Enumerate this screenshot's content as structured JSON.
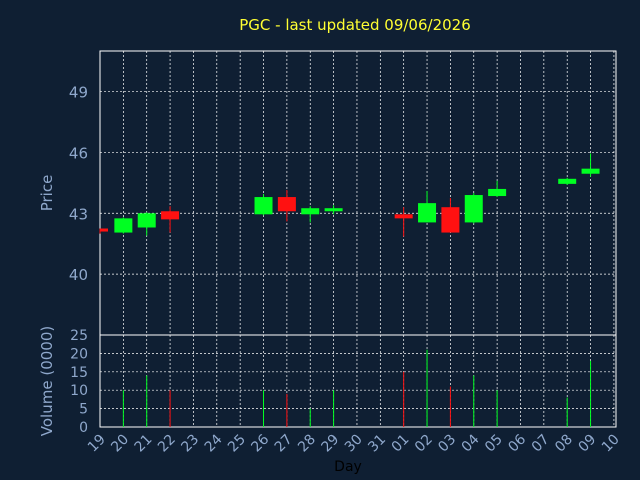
{
  "chart_data": {
    "type": "candlestick",
    "title": "PGC - last updated 09/06/2026",
    "xlabel": "Day",
    "price_panel": {
      "ylabel": "Price",
      "yticks": [
        40,
        43,
        46,
        49
      ],
      "ylim": [
        37,
        41.05
      ],
      "grid": true
    },
    "volume_panel": {
      "ylabel": "Volume (0000)",
      "yticks": [
        0,
        5,
        10,
        15,
        20,
        25
      ],
      "ylim": [
        0,
        25
      ],
      "grid": true
    },
    "days": [
      "19",
      "20",
      "21",
      "22",
      "23",
      "24",
      "25",
      "26",
      "27",
      "28",
      "29",
      "30",
      "31",
      "01",
      "02",
      "03",
      "04",
      "05",
      "06",
      "07",
      "08",
      "09",
      "10"
    ],
    "candles": [
      {
        "day": "19",
        "open": 42.1,
        "high": 42.25,
        "low": 42.0,
        "close": 42.25,
        "volume": 0,
        "color": "red"
      },
      {
        "day": "20",
        "open": 42.05,
        "high": 42.8,
        "low": 42.0,
        "close": 42.75,
        "volume": 10,
        "color": "green"
      },
      {
        "day": "21",
        "open": 42.3,
        "high": 43.05,
        "low": 41.9,
        "close": 43.0,
        "volume": 14,
        "color": "green"
      },
      {
        "day": "22",
        "open": 43.1,
        "high": 43.35,
        "low": 42.05,
        "close": 42.7,
        "volume": 10,
        "color": "red"
      },
      {
        "day": "26",
        "open": 42.95,
        "high": 43.95,
        "low": 42.9,
        "close": 43.8,
        "volume": 10,
        "color": "green"
      },
      {
        "day": "27",
        "open": 43.8,
        "high": 44.15,
        "low": 42.6,
        "close": 43.1,
        "volume": 9,
        "color": "red"
      },
      {
        "day": "28",
        "open": 42.95,
        "high": 43.35,
        "low": 42.55,
        "close": 43.25,
        "volume": 5,
        "color": "green"
      },
      {
        "day": "29",
        "open": 43.1,
        "high": 43.4,
        "low": 42.95,
        "close": 43.25,
        "volume": 10,
        "color": "green"
      },
      {
        "day": "01",
        "open": 42.95,
        "high": 43.3,
        "low": 41.85,
        "close": 42.75,
        "volume": 15,
        "color": "red"
      },
      {
        "day": "02",
        "open": 42.55,
        "high": 44.1,
        "low": 42.55,
        "close": 43.5,
        "volume": 21,
        "color": "green"
      },
      {
        "day": "03",
        "open": 43.3,
        "high": 43.75,
        "low": 42.05,
        "close": 42.05,
        "volume": 11,
        "color": "red"
      },
      {
        "day": "04",
        "open": 42.55,
        "high": 44.0,
        "low": 42.5,
        "close": 43.9,
        "volume": 14,
        "color": "green"
      },
      {
        "day": "05",
        "open": 43.85,
        "high": 44.6,
        "low": 43.8,
        "close": 44.2,
        "volume": 10,
        "color": "green"
      },
      {
        "day": "08",
        "open": 44.45,
        "high": 44.75,
        "low": 44.4,
        "close": 44.7,
        "volume": 8,
        "color": "green"
      },
      {
        "day": "09",
        "open": 44.95,
        "high": 45.95,
        "low": 44.8,
        "close": 45.2,
        "volume": 18,
        "color": "green"
      }
    ],
    "colors": {
      "background": "#0f1f33",
      "up": "#00ff22",
      "down": "#ff1111",
      "grid": "#ffffff",
      "axis_text": "#8fa8cc",
      "title": "#ffff33"
    }
  }
}
